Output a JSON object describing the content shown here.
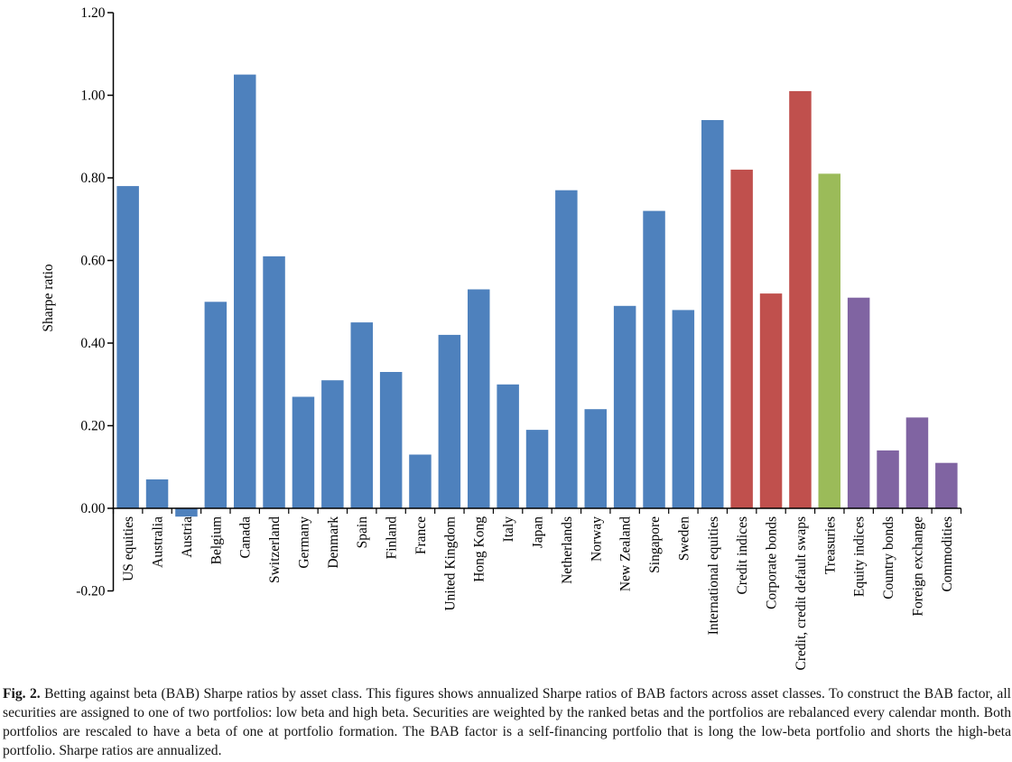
{
  "figure": {
    "caption": {
      "label": "Fig. 2.",
      "text": " Betting against beta (BAB) Sharpe ratios by asset class. This figures shows annualized Sharpe ratios of BAB factors across asset classes. To construct the BAB factor, all securities are assigned to one of two portfolios: low beta and high beta. Securities are weighted by the ranked betas and the portfolios are rebalanced every calendar month. Both portfolios are rescaled to have a beta of one at portfolio formation. The BAB factor is a self-financing portfolio that is long the low-beta portfolio and shorts the high-beta portfolio. Sharpe ratios are annualized."
    }
  },
  "chart_data": {
    "type": "bar",
    "title": "",
    "xlabel": "",
    "ylabel": "Sharpe ratio",
    "ylim": [
      -0.2,
      1.2
    ],
    "ytick_step": 0.2,
    "ytick_labels": [
      "1.20",
      "1.00",
      "0.80",
      "0.60",
      "0.40",
      "0.20",
      "0.00",
      "-0.20"
    ],
    "grid": false,
    "legend": "none",
    "bar_color_groups": {
      "equities": "#4E81BD",
      "credit": "#C0504D",
      "treasuries": "#9BBB59",
      "other": "#8064A2"
    },
    "categories": [
      "US equities",
      "Australia",
      "Austria",
      "Belgium",
      "Canada",
      "Switzerland",
      "Germany",
      "Denmark",
      "Spain",
      "Finland",
      "France",
      "United Kingdom",
      "Hong Kong",
      "Italy",
      "Japan",
      "Netherlands",
      "Norway",
      "New Zealand",
      "Singapore",
      "Sweden",
      "International equities",
      "Credit indices",
      "Corporate bonds",
      "Credit, credit default swaps",
      "Treasuries",
      "Equity indices",
      "Country bonds",
      "Foreign exchange",
      "Commodities"
    ],
    "values": [
      0.78,
      0.07,
      -0.02,
      0.5,
      1.05,
      0.61,
      0.27,
      0.31,
      0.45,
      0.33,
      0.13,
      0.42,
      0.53,
      0.3,
      0.19,
      0.77,
      0.24,
      0.49,
      0.72,
      0.48,
      0.94,
      0.82,
      0.52,
      1.01,
      0.81,
      0.51,
      0.14,
      0.22,
      0.11
    ],
    "groups": [
      "equities",
      "equities",
      "equities",
      "equities",
      "equities",
      "equities",
      "equities",
      "equities",
      "equities",
      "equities",
      "equities",
      "equities",
      "equities",
      "equities",
      "equities",
      "equities",
      "equities",
      "equities",
      "equities",
      "equities",
      "equities",
      "credit",
      "credit",
      "credit",
      "treasuries",
      "other",
      "other",
      "other",
      "other"
    ]
  }
}
